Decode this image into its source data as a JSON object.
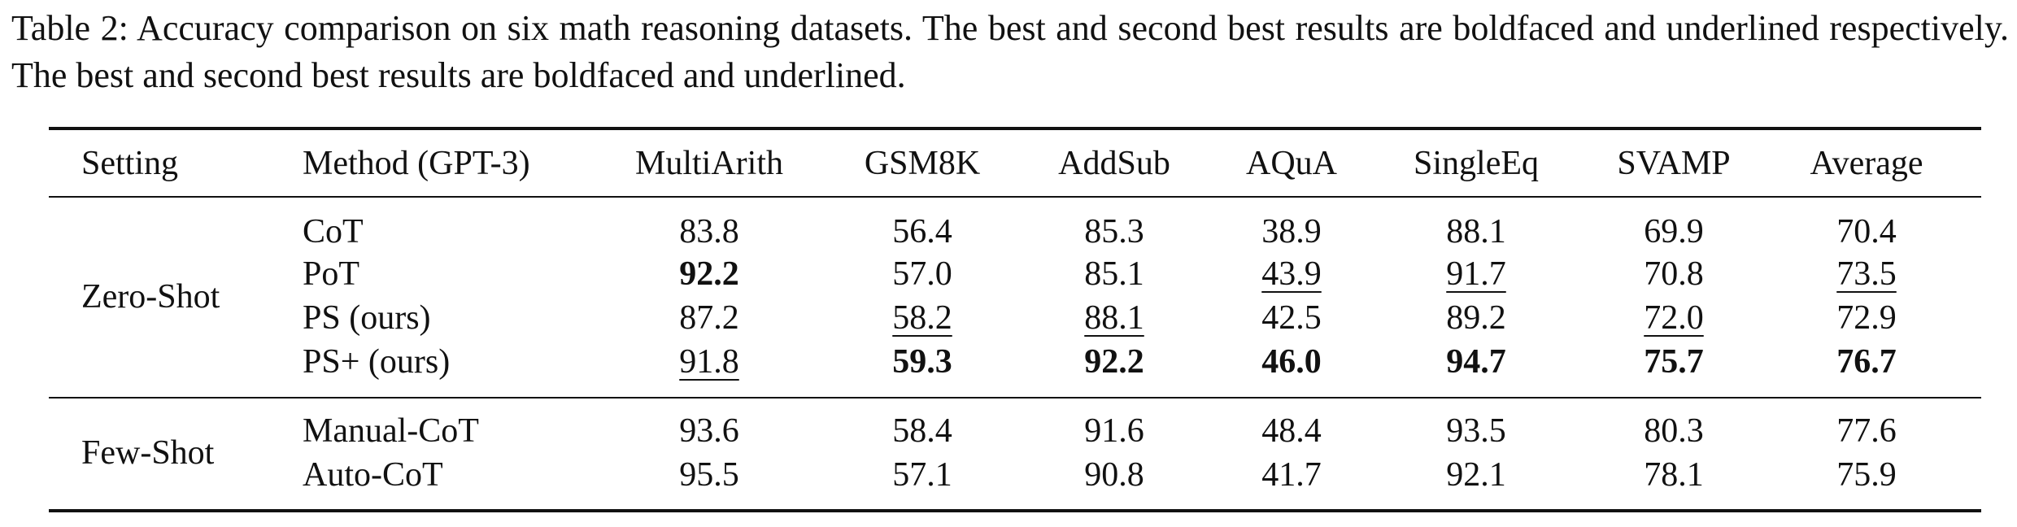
{
  "caption": "Table 2: Accuracy comparison on six math reasoning datasets. The best and second best results are boldfaced and underlined respectively. The best and second best results are boldfaced and underlined.",
  "table": {
    "header": [
      "Setting",
      "Method (GPT-3)",
      "MultiArith",
      "GSM8K",
      "AddSub",
      "AQuA",
      "SingleEq",
      "SVAMP",
      "Average"
    ],
    "groups": [
      {
        "setting": "Zero-Shot",
        "rows": [
          {
            "method": "CoT",
            "values": [
              "83.8",
              "56.4",
              "85.3",
              "38.9",
              "88.1",
              "69.9",
              "70.4"
            ]
          },
          {
            "method": "PoT",
            "values": [
              "92.2",
              "57.0",
              "85.1",
              "43.9",
              "91.7",
              "70.8",
              "73.5"
            ]
          },
          {
            "method": "PS (ours)",
            "values": [
              "87.2",
              "58.2",
              "88.1",
              "42.5",
              "89.2",
              "72.0",
              "72.9"
            ]
          },
          {
            "method": "PS+ (ours)",
            "values": [
              "91.8",
              "59.3",
              "92.2",
              "46.0",
              "94.7",
              "75.7",
              "76.7"
            ]
          }
        ]
      },
      {
        "setting": "Few-Shot",
        "rows": [
          {
            "method": "Manual-CoT",
            "values": [
              "93.6",
              "58.4",
              "91.6",
              "48.4",
              "93.5",
              "80.3",
              "77.6"
            ]
          },
          {
            "method": "Auto-CoT",
            "values": [
              "95.5",
              "57.1",
              "90.8",
              "41.7",
              "92.1",
              "78.1",
              "75.9"
            ]
          }
        ]
      }
    ]
  }
}
